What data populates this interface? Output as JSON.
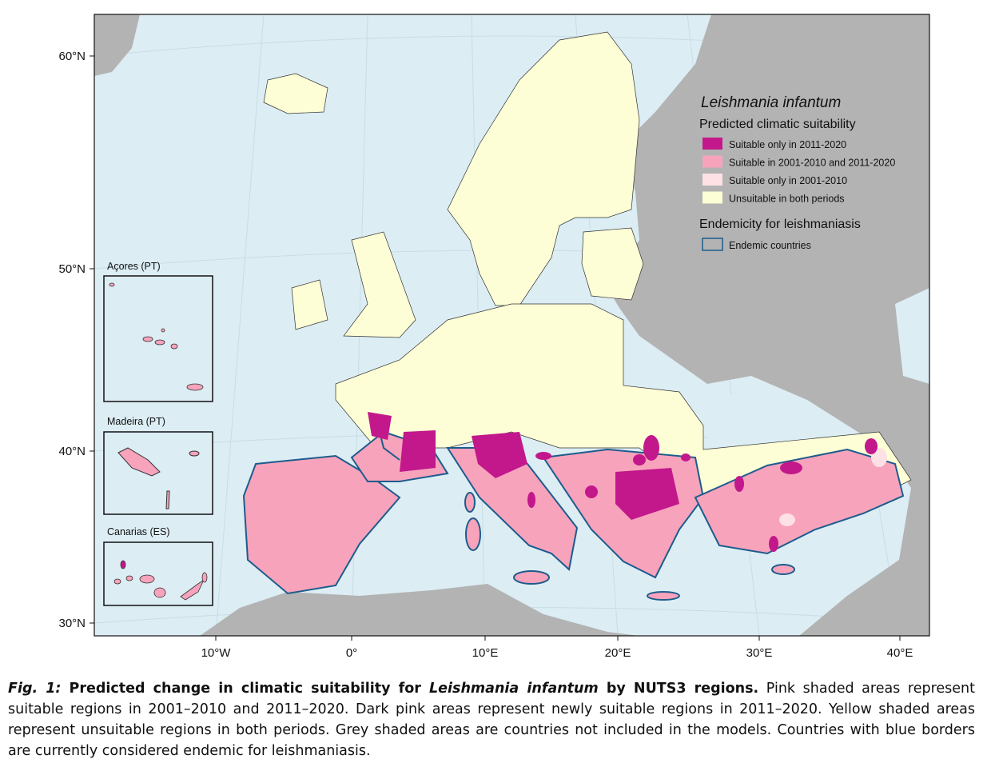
{
  "map": {
    "latitude_labels": [
      "60°N",
      "50°N",
      "40°N",
      "30°N"
    ],
    "longitude_labels": [
      "10°W",
      "0°",
      "10°E",
      "20°E",
      "30°E",
      "40°E"
    ],
    "legend": {
      "title": "Leishmania infantum",
      "subtitle": "Predicted climatic suitability",
      "items": [
        {
          "label": "Suitable only in 2011-2020",
          "color": "#c2188b"
        },
        {
          "label": "Suitable in 2001-2010 and 2011-2020",
          "color": "#f7a3bc"
        },
        {
          "label": "Suitable only in 2001-2010",
          "color": "#fde1e4"
        },
        {
          "label": "Unsuitable in both periods",
          "color": "#fdfdd6"
        }
      ],
      "endemicity_title": "Endemicity for leishmaniasis",
      "endemic_item": {
        "label": "Endemic countries",
        "color": "#1d5c8c"
      }
    },
    "insets": [
      "Açores (PT)",
      "Madeira (PT)",
      "Canarias (ES)"
    ]
  },
  "caption": {
    "parts": [
      "Fig. 1:",
      " Predicted change in climatic suitability for ",
      "Leishmania infantum",
      " by NUTS3 regions.",
      " Pink shaded areas represent suitable regions in 2001–2010 and 2011–2020. Dark pink areas represent newly suitable regions in 2011–2020. Yellow shaded areas represent unsuitable regions in both periods. Grey shaded areas are countries not included in the models. Countries with blue borders are currently considered endemic for leishmaniasis."
    ]
  }
}
